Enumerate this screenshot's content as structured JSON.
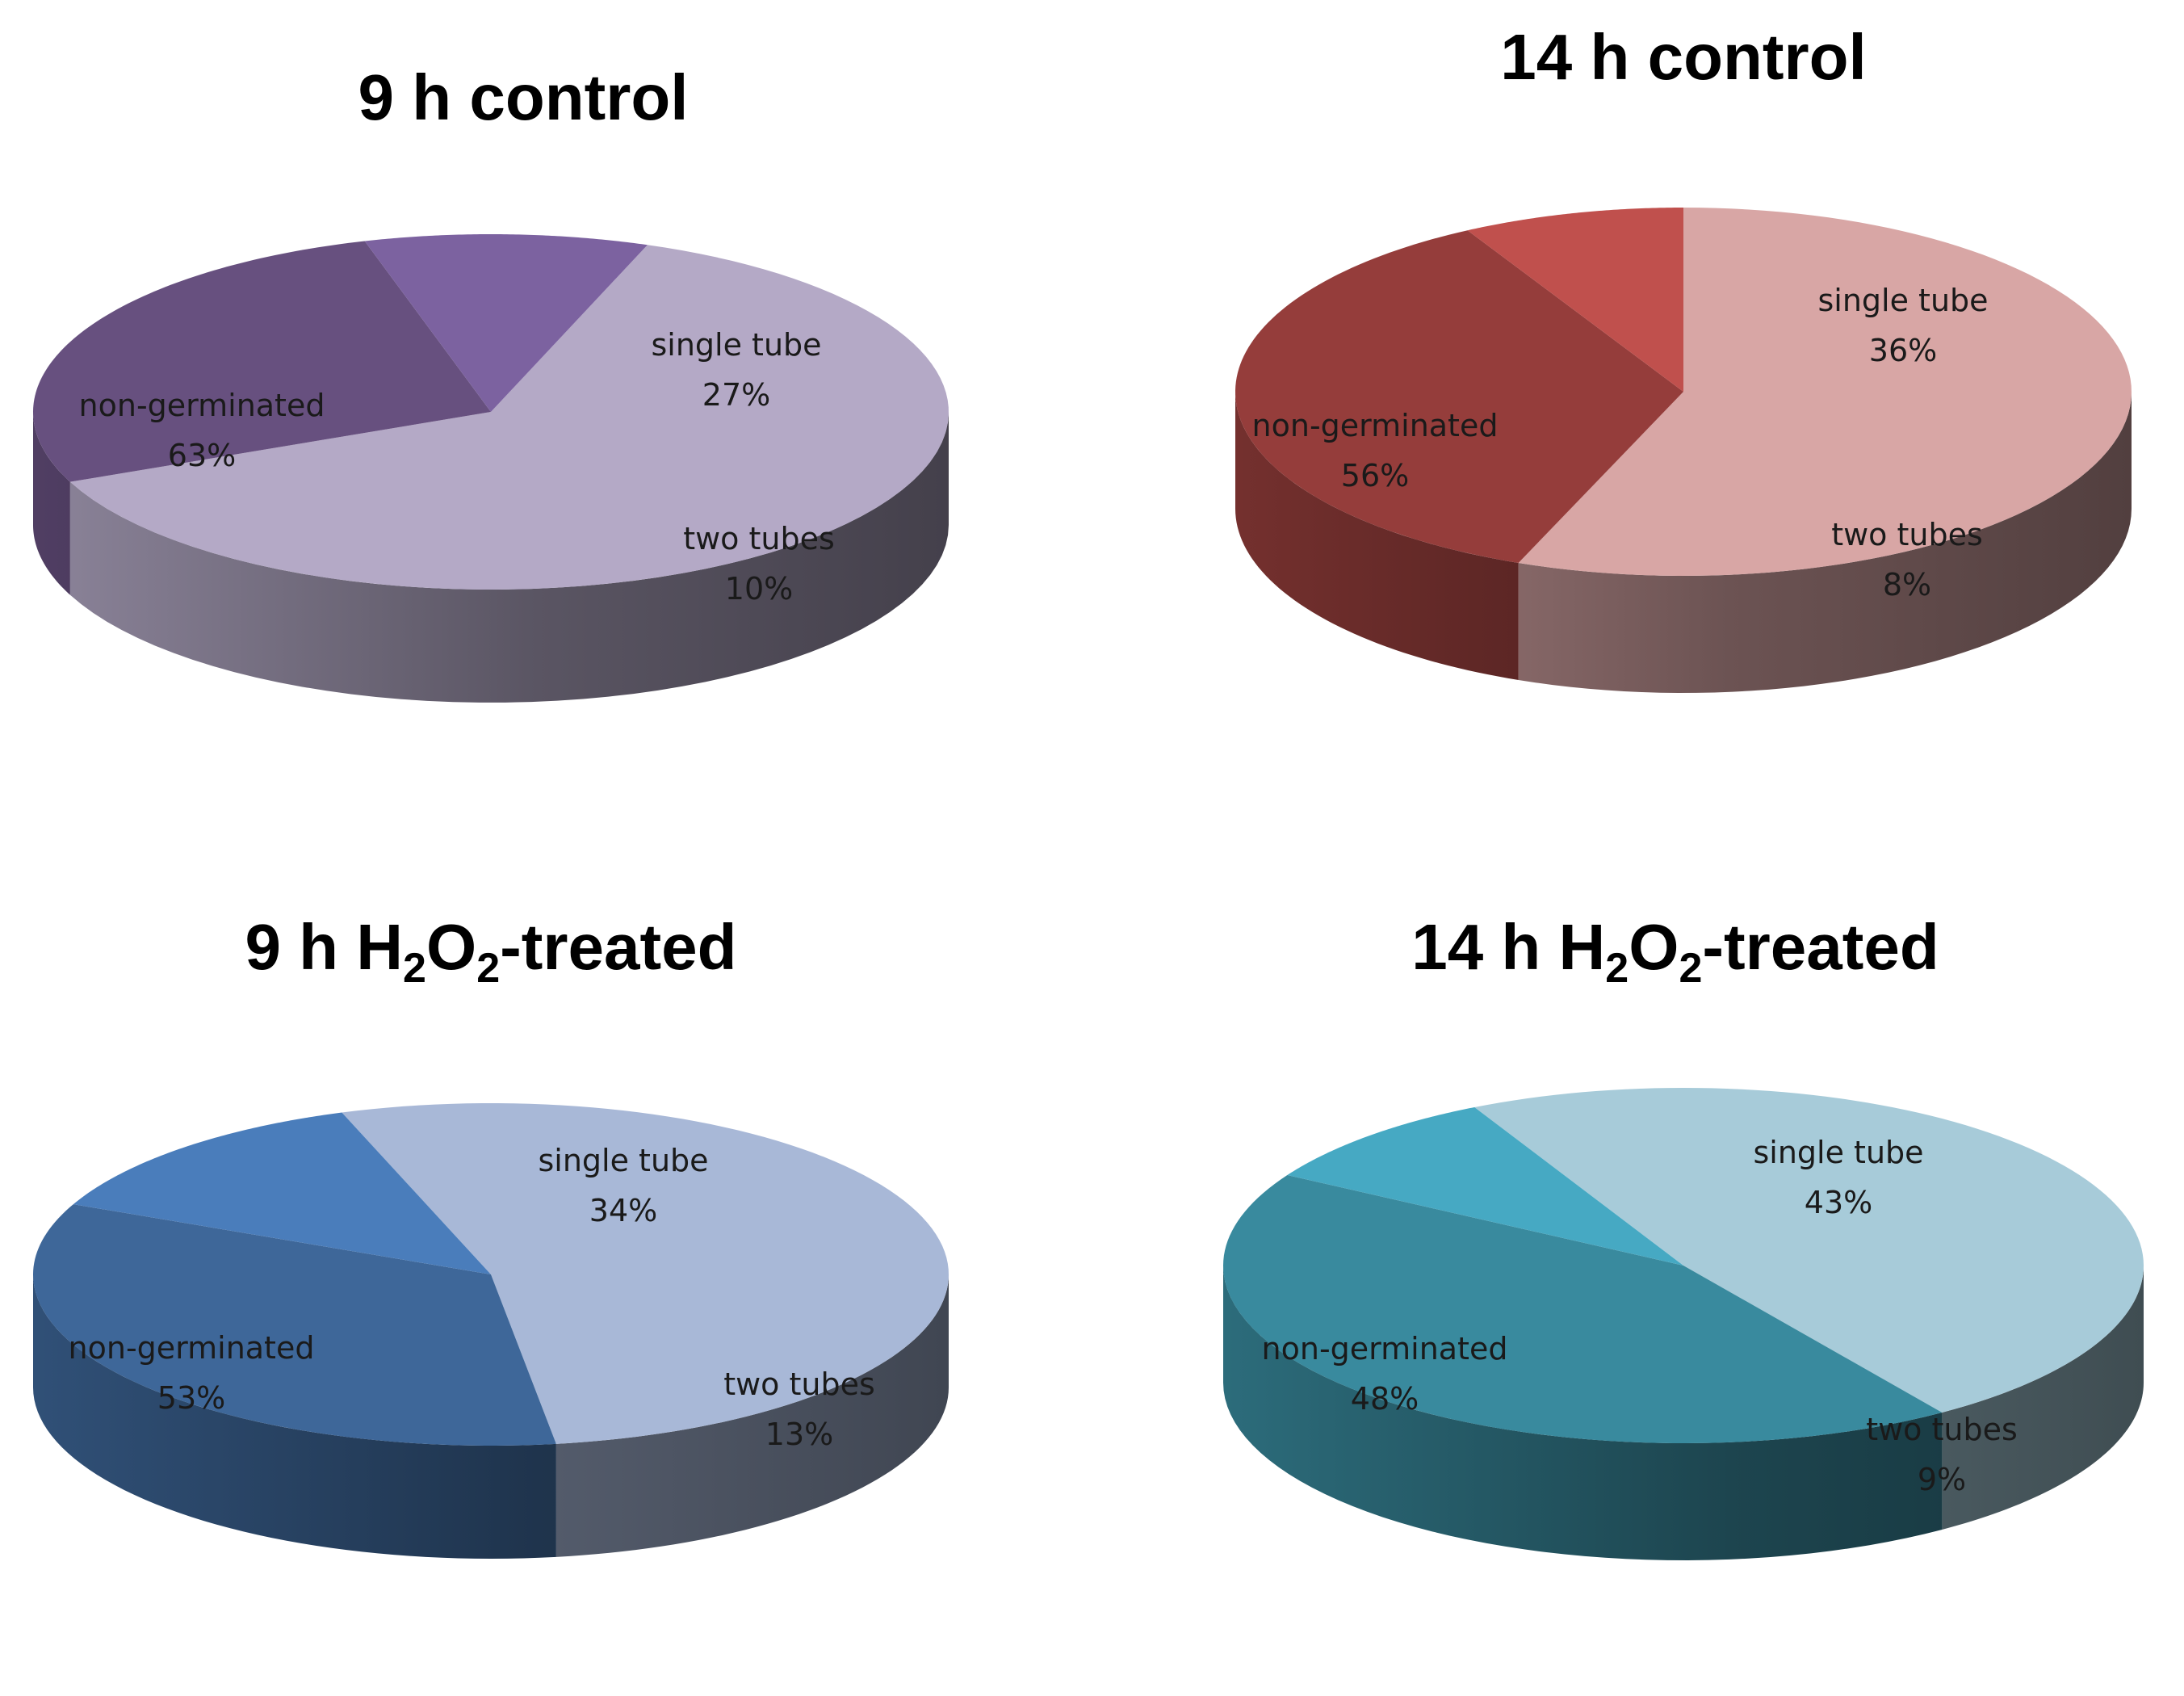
{
  "chart_data": [
    {
      "type": "pie",
      "title": "9 h control",
      "title_sub": "",
      "title_suffix": "",
      "title_tail": "",
      "slices": [
        {
          "label": "non-germinated",
          "value_label": "63%",
          "value": 63,
          "color": "#b4a9c6"
        },
        {
          "label": "single tube",
          "value_label": "27%",
          "value": 27,
          "color": "#67507f"
        },
        {
          "label": "two tubes",
          "value_label": "10%",
          "value": 10,
          "color": "#7c62a0"
        }
      ]
    },
    {
      "type": "pie",
      "title": "14 h control",
      "title_sub": "",
      "title_suffix": "",
      "title_tail": "",
      "slices": [
        {
          "label": "non-germinated",
          "value_label": "56%",
          "value": 56,
          "color": "#d8a6a5"
        },
        {
          "label": "single tube",
          "value_label": "36%",
          "value": 36,
          "color": "#953d3b"
        },
        {
          "label": "two tubes",
          "value_label": "8%",
          "value": 8,
          "color": "#c0504d"
        }
      ]
    },
    {
      "type": "pie",
      "title": "9 h H",
      "title_sub": "2",
      "title_suffix": "O",
      "title_sub2": "2",
      "title_tail": "-treated",
      "slices": [
        {
          "label": "non-germinated",
          "value_label": "53%",
          "value": 53,
          "color": "#a8b8d7"
        },
        {
          "label": "single tube",
          "value_label": "34%",
          "value": 34,
          "color": "#3e6799"
        },
        {
          "label": "two tubes",
          "value_label": "13%",
          "value": 13,
          "color": "#4a7dbb"
        }
      ]
    },
    {
      "type": "pie",
      "title": "14 h H",
      "title_sub": "2",
      "title_suffix": "O",
      "title_sub2": "2",
      "title_tail": "-treated",
      "slices": [
        {
          "label": "non-germinated",
          "value_label": "48%",
          "value": 48,
          "color": "#a7cbd9"
        },
        {
          "label": "single tube",
          "value_label": "43%",
          "value": 43,
          "color": "#398a9e"
        },
        {
          "label": "two tubes",
          "value_label": "9%",
          "value": 9,
          "color": "#46a9c3"
        }
      ]
    }
  ]
}
